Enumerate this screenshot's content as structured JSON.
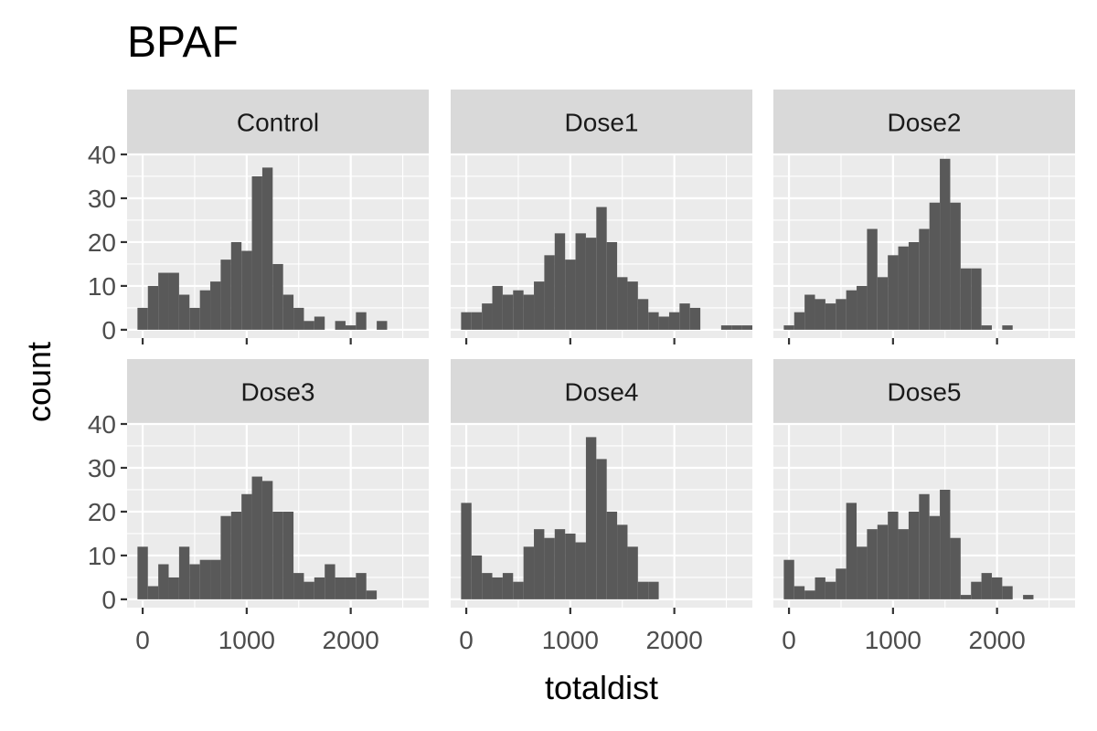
{
  "chart_data": {
    "type": "bar",
    "title": "BPAF",
    "xlabel": "totaldist",
    "ylabel": "count",
    "xlim": [
      -150,
      2750
    ],
    "ylim": [
      -1.9,
      40
    ],
    "x_ticks": [
      0,
      1000,
      2000
    ],
    "y_ticks": [
      0,
      10,
      20,
      30,
      40
    ],
    "bin_start": -50,
    "bin_width": 100,
    "facets": [
      {
        "name": "Control",
        "values": [
          5,
          10,
          13,
          13,
          8,
          5,
          9,
          11,
          16,
          20,
          18,
          35,
          37,
          15,
          8,
          5,
          2,
          3,
          0,
          2,
          1,
          4,
          0,
          2,
          0,
          0,
          0,
          0
        ]
      },
      {
        "name": "Dose1",
        "values": [
          4,
          4,
          6,
          10,
          8,
          9,
          8,
          11,
          17,
          22,
          16,
          22,
          21,
          28,
          20,
          12,
          11,
          7,
          4,
          3,
          4,
          6,
          5,
          0,
          0,
          1,
          1,
          1
        ]
      },
      {
        "name": "Dose2",
        "values": [
          1,
          4,
          8,
          7,
          6,
          7,
          9,
          10,
          23,
          12,
          17,
          19,
          20,
          23,
          29,
          39,
          29,
          14,
          14,
          1,
          0,
          1,
          0,
          0,
          0,
          0,
          0,
          0
        ]
      },
      {
        "name": "Dose3",
        "values": [
          12,
          3,
          8,
          5,
          12,
          8,
          9,
          9,
          19,
          20,
          24,
          28,
          27,
          20,
          20,
          6,
          4,
          5,
          8,
          5,
          5,
          6,
          2,
          0,
          0,
          0,
          0,
          0
        ]
      },
      {
        "name": "Dose4",
        "values": [
          22,
          10,
          6,
          5,
          6,
          4,
          12,
          16,
          14,
          16,
          15,
          13,
          37,
          32,
          20,
          17,
          12,
          4,
          4,
          0,
          0,
          0,
          0,
          0,
          0,
          0,
          0,
          0
        ]
      },
      {
        "name": "Dose5",
        "values": [
          9,
          3,
          2,
          5,
          4,
          7,
          22,
          12,
          16,
          17,
          20,
          16,
          20,
          24,
          19,
          25,
          14,
          1,
          4,
          6,
          5,
          3,
          0,
          1,
          0,
          0,
          0,
          0
        ]
      }
    ]
  }
}
